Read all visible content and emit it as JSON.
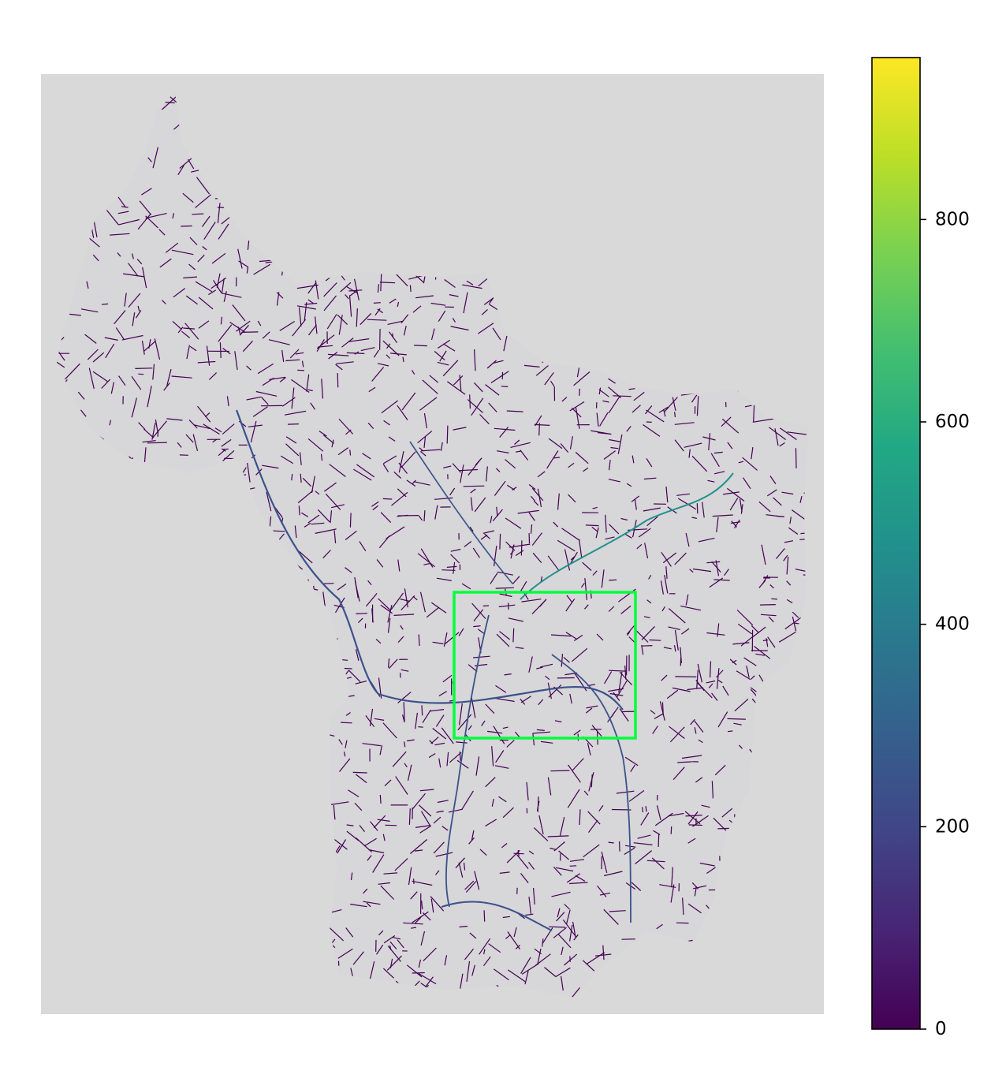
{
  "colors": {
    "map_background": "#d9d9d9",
    "road_base": "#440154",
    "road_mid": "#3b528b",
    "road_high": "#21918c",
    "highlight_box": "#00ff3c",
    "colorbar_top": "#fde725",
    "colorbar_bottom": "#440154"
  },
  "map": {
    "description_visible": "street network colored by a scalar value with a highlighted rectangular region"
  },
  "colorbar": {
    "colormap": "viridis",
    "range": [
      0,
      960
    ],
    "ticks": [
      {
        "value": 0,
        "label": "0"
      },
      {
        "value": 200,
        "label": "200"
      },
      {
        "value": 400,
        "label": "400"
      },
      {
        "value": 600,
        "label": "600"
      },
      {
        "value": 800,
        "label": "800"
      }
    ]
  }
}
